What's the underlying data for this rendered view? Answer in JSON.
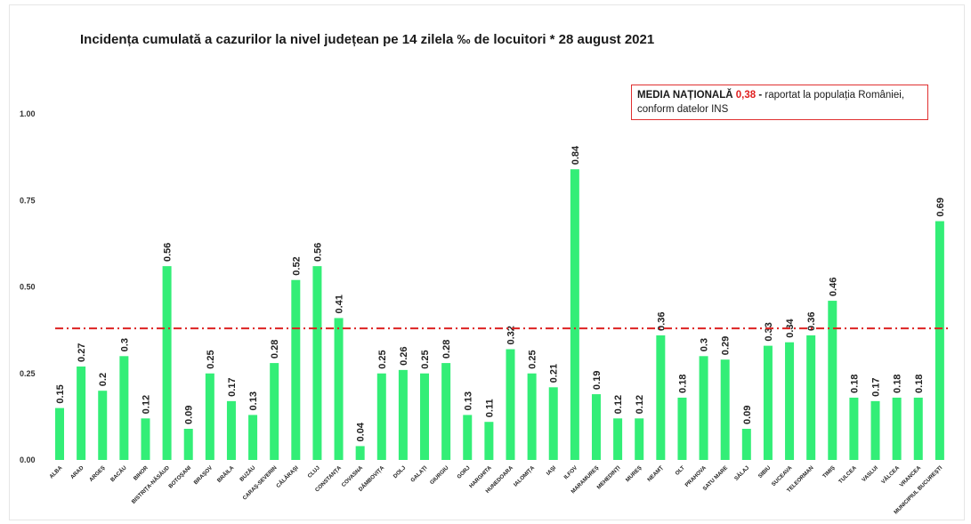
{
  "chart_data": {
    "type": "bar",
    "title": "Incidența cumulată a cazurilor la nivel județean pe 14 zilela ‰ de locuitori * 28 august 2021",
    "categories": [
      "ALBA",
      "ARAD",
      "ARGEȘ",
      "BACĂU",
      "BIHOR",
      "BISTRIȚA-NĂSĂUD",
      "BOTOȘANI",
      "BRAȘOV",
      "BRĂILA",
      "BUZĂU",
      "CARAȘ-SEVERIN",
      "CĂLĂRAȘI",
      "CLUJ",
      "CONSTANȚA",
      "COVASNA",
      "DÂMBOVIȚA",
      "DOLJ",
      "GALAȚI",
      "GIURGIU",
      "GORJ",
      "HARGHITA",
      "HUNEDOARA",
      "IALOMIȚA",
      "IAȘI",
      "ILFOV",
      "MARAMUREȘ",
      "MEHEDINȚI",
      "MUREȘ",
      "NEAMȚ",
      "OLT",
      "PRAHOVA",
      "SATU MARE",
      "SĂLAJ",
      "SIBIU",
      "SUCEAVA",
      "TELEORMAN",
      "TIMIȘ",
      "TULCEA",
      "VASLUI",
      "VÂLCEA",
      "VRANCEA",
      "MUNICIPIUL BUCUREȘTI"
    ],
    "values": [
      0.15,
      0.27,
      0.2,
      0.3,
      0.12,
      0.56,
      0.09,
      0.25,
      0.17,
      0.13,
      0.28,
      0.52,
      0.56,
      0.41,
      0.04,
      0.25,
      0.26,
      0.25,
      0.28,
      0.13,
      0.11,
      0.32,
      0.25,
      0.21,
      0.84,
      0.19,
      0.12,
      0.12,
      0.36,
      0.18,
      0.3,
      0.29,
      0.09,
      0.33,
      0.34,
      0.36,
      0.46,
      0.18,
      0.17,
      0.18,
      0.18,
      0.69
    ],
    "value_labels": [
      "0.15",
      "0.27",
      "0.2",
      "0.3",
      "0.12",
      "0.56",
      "0.09",
      "0.25",
      "0.17",
      "0.13",
      "0.28",
      "0.52",
      "0.56",
      "0.41",
      "0.04",
      "0.25",
      "0.26",
      "0.25",
      "0.28",
      "0.13",
      "0.11",
      "0.32",
      "0.25",
      "0.21",
      "0.84",
      "0.19",
      "0.12",
      "0.12",
      "0.36",
      "0.18",
      "0.3",
      "0.29",
      "0.09",
      "0.33",
      "0.34",
      "0.36",
      "0.46",
      "0.18",
      "0.17",
      "0.18",
      "0.18",
      "0.69"
    ],
    "yticks": [
      "0.00",
      "0.25",
      "0.50",
      "0.75",
      "1.00"
    ],
    "ytick_values": [
      0,
      0.25,
      0.5,
      0.75,
      1.0
    ],
    "ylim": [
      0,
      1.0
    ],
    "reference_line": 0.38,
    "grid": false,
    "colors": {
      "bar": "#33ee77",
      "reference_line": "#dd2222",
      "note_border": "#e03030"
    }
  },
  "note": {
    "lead": "MEDIA NAȚIONALĂ",
    "value": "0,38",
    "dash": "-",
    "text": "raportat la populația României,",
    "text2": "conform datelor INS"
  }
}
